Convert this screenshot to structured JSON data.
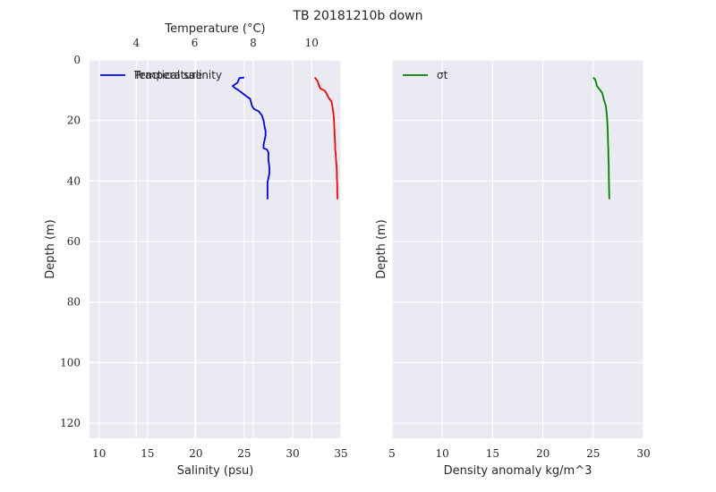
{
  "title": "TB 20181210b down",
  "chart_data": [
    {
      "type": "line",
      "panel": "left",
      "xlabel": "Salinity (psu)",
      "ylabel": "Depth (m)",
      "xlim": [
        9,
        35
      ],
      "ylim": [
        125,
        0
      ],
      "xticks": [
        10,
        15,
        20,
        25,
        30,
        35
      ],
      "yticks": [
        0,
        20,
        40,
        60,
        80,
        100,
        120
      ],
      "top_axis": {
        "label": "Temperature (°C)",
        "lim": [
          2.4,
          11.0
        ],
        "ticks": [
          4,
          6,
          8,
          10
        ]
      },
      "grid": true,
      "legend": {
        "location": "upper-left",
        "entries": [
          "Practical salinity",
          "Temperature"
        ]
      },
      "series": [
        {
          "name": "Practical salinity",
          "axis": "bottom",
          "color": "#0000ff",
          "points": [
            [
              25.0,
              5.8
            ],
            [
              24.5,
              6.0
            ],
            [
              24.3,
              7.5
            ],
            [
              23.8,
              8.6
            ],
            [
              24.0,
              9.2
            ],
            [
              24.4,
              10.0
            ],
            [
              24.9,
              11.2
            ],
            [
              25.3,
              12.2
            ],
            [
              25.6,
              12.8
            ],
            [
              25.7,
              14.0
            ],
            [
              25.8,
              15.2
            ],
            [
              26.0,
              16.2
            ],
            [
              26.5,
              17.0
            ],
            [
              26.8,
              18.2
            ],
            [
              27.0,
              20.0
            ],
            [
              27.1,
              22.0
            ],
            [
              27.2,
              23.5
            ],
            [
              27.2,
              25.0
            ],
            [
              27.1,
              26.5
            ],
            [
              27.0,
              28.0
            ],
            [
              27.0,
              29.2
            ],
            [
              27.3,
              29.5
            ],
            [
              27.5,
              30.5
            ],
            [
              27.5,
              33.0
            ],
            [
              27.6,
              35.5
            ],
            [
              27.6,
              37.5
            ],
            [
              27.5,
              39.0
            ],
            [
              27.4,
              40.5
            ],
            [
              27.4,
              46.0
            ]
          ]
        },
        {
          "name": "Temperature",
          "axis": "top",
          "color": "#ff0000",
          "points": [
            [
              10.1,
              5.8
            ],
            [
              10.2,
              7.0
            ],
            [
              10.25,
              8.5
            ],
            [
              10.3,
              9.5
            ],
            [
              10.45,
              10.2
            ],
            [
              10.5,
              11.0
            ],
            [
              10.55,
              12.0
            ],
            [
              10.6,
              12.8
            ],
            [
              10.68,
              13.8
            ],
            [
              10.7,
              15.0
            ],
            [
              10.73,
              17.0
            ],
            [
              10.75,
              18.5
            ],
            [
              10.76,
              20.0
            ],
            [
              10.77,
              22.0
            ],
            [
              10.78,
              24.0
            ],
            [
              10.79,
              26.0
            ],
            [
              10.8,
              28.0
            ],
            [
              10.8,
              29.5
            ],
            [
              10.82,
              31.0
            ],
            [
              10.83,
              33.0
            ],
            [
              10.85,
              35.0
            ],
            [
              10.86,
              37.0
            ],
            [
              10.86,
              39.0
            ],
            [
              10.87,
              41.0
            ],
            [
              10.87,
              43.0
            ],
            [
              10.88,
              46.0
            ]
          ]
        }
      ]
    },
    {
      "type": "line",
      "panel": "right",
      "xlabel": "Density anomaly kg/m^3",
      "ylabel": "Depth (m)",
      "xlim": [
        5,
        30
      ],
      "ylim": [
        125,
        0
      ],
      "xticks": [
        5,
        10,
        15,
        20,
        25,
        30
      ],
      "yticks": [
        0,
        20,
        40,
        60,
        80,
        100,
        120
      ],
      "grid": true,
      "legend": {
        "location": "upper-left",
        "entries": [
          "σt"
        ]
      },
      "series": [
        {
          "name": "σt",
          "color": "#008000",
          "points": [
            [
              25.0,
              5.8
            ],
            [
              25.2,
              6.5
            ],
            [
              25.3,
              7.5
            ],
            [
              25.35,
              8.5
            ],
            [
              25.5,
              9.2
            ],
            [
              25.7,
              10.0
            ],
            [
              25.9,
              11.0
            ],
            [
              26.0,
              12.2
            ],
            [
              26.05,
              13.0
            ],
            [
              26.15,
              14.0
            ],
            [
              26.25,
              15.2
            ],
            [
              26.3,
              16.5
            ],
            [
              26.35,
              18.0
            ],
            [
              26.4,
              20.0
            ],
            [
              26.42,
              22.0
            ],
            [
              26.45,
              24.0
            ],
            [
              26.47,
              26.0
            ],
            [
              26.48,
              28.0
            ],
            [
              26.5,
              29.5
            ],
            [
              26.5,
              31.0
            ],
            [
              26.52,
              33.0
            ],
            [
              26.55,
              35.0
            ],
            [
              26.55,
              37.0
            ],
            [
              26.56,
              39.0
            ],
            [
              26.57,
              41.0
            ],
            [
              26.58,
              43.0
            ],
            [
              26.6,
              46.0
            ]
          ]
        }
      ]
    }
  ]
}
